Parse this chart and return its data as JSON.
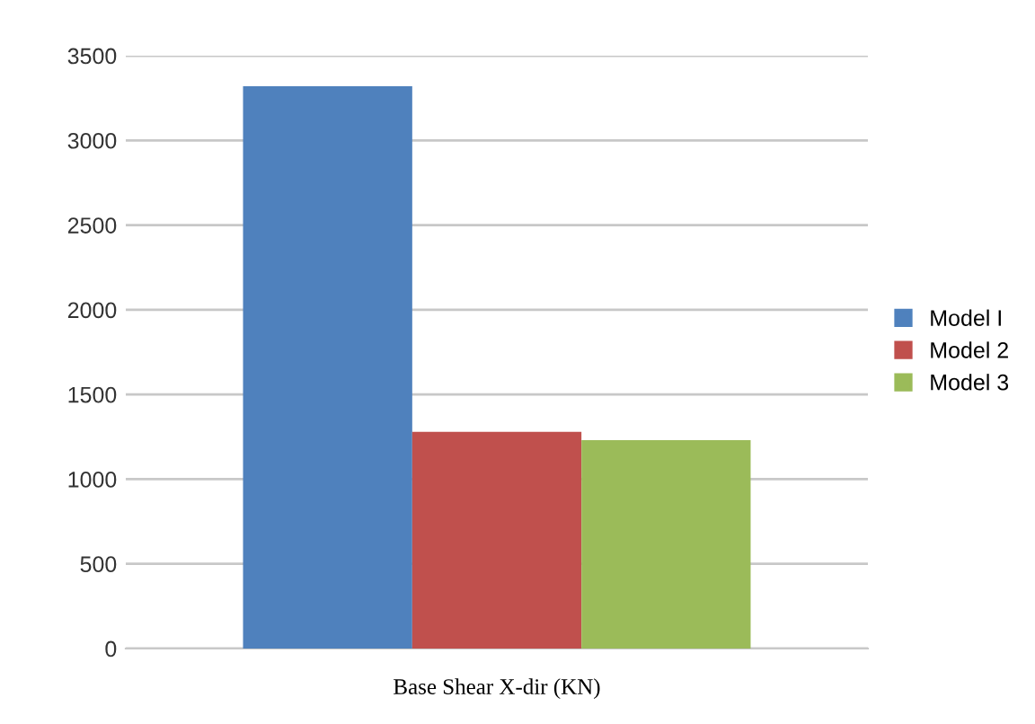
{
  "chart_data": {
    "type": "bar",
    "categories": [
      "Base Shear X-dir (KN)"
    ],
    "series": [
      {
        "name": "Model I",
        "color": "#4f81bd",
        "values": [
          3320
        ]
      },
      {
        "name": "Model 2",
        "color": "#c0504d",
        "values": [
          1280
        ]
      },
      {
        "name": "Model 3",
        "color": "#9bbb59",
        "values": [
          1230
        ]
      }
    ],
    "ylim": [
      0,
      3500
    ],
    "yticks": [
      0,
      500,
      1000,
      1500,
      2000,
      2500,
      3000,
      3500
    ],
    "grid": "y",
    "legend": "right"
  }
}
